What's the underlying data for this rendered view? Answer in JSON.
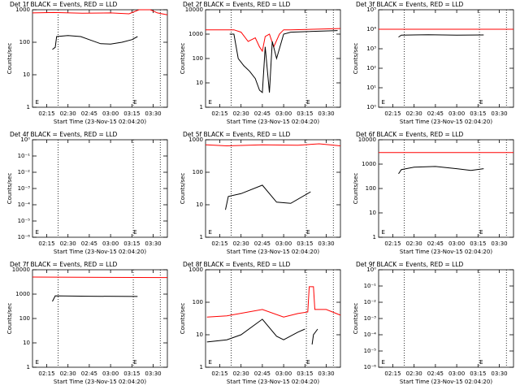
{
  "chart_data": [
    {
      "type": "line",
      "title": "Det 1f BLACK = Events, RED = LLD",
      "xlabel": "Start Time (23-Nov-15 02:04:20)",
      "ylabel": "Counts/sec",
      "ylog": true,
      "xlim": [
        "02:05",
        "03:40"
      ],
      "xticks": [
        "02:15",
        "02:30",
        "02:45",
        "03:00",
        "03:15",
        "03:30"
      ],
      "ylim": [
        1,
        1000
      ],
      "yticks": [
        1,
        10,
        100,
        1000
      ],
      "vlines": [
        "02:23",
        "03:16",
        "03:35"
      ],
      "markers": [
        {
          "label": "E",
          "x": "02:07"
        },
        {
          "label": "E",
          "x": "03:16"
        }
      ],
      "series": [
        {
          "color": "#ff0000",
          "x": [
            "02:05",
            "02:20",
            "02:40",
            "03:00",
            "03:13",
            "03:20",
            "03:28",
            "03:33",
            "03:40"
          ],
          "values": [
            800,
            820,
            780,
            800,
            750,
            1000,
            1000,
            800,
            700
          ]
        },
        {
          "color": "#000000",
          "x": [
            "02:19",
            "02:21",
            "02:22",
            "02:30",
            "02:39",
            "02:45",
            "02:53",
            "03:00",
            "03:08",
            "03:15",
            "03:19"
          ],
          "values": [
            60,
            70,
            150,
            160,
            150,
            120,
            90,
            88,
            100,
            120,
            150
          ]
        }
      ]
    },
    {
      "type": "line",
      "title": "Det 2f BLACK = Events, RED = LLD",
      "xlabel": "Start Time (23-Nov-15 02:04:20)",
      "ylabel": "Counts/sec",
      "ylog": true,
      "xlim": [
        "02:05",
        "03:40"
      ],
      "xticks": [
        "02:15",
        "02:30",
        "02:45",
        "03:00",
        "03:15",
        "03:30"
      ],
      "ylim": [
        1,
        10000
      ],
      "yticks": [
        1,
        10,
        100,
        1000,
        10000
      ],
      "vlines": [
        "02:23",
        "03:16",
        "03:35"
      ],
      "markers": [
        {
          "label": "E",
          "x": "02:07"
        },
        {
          "label": "E",
          "x": "03:16"
        }
      ],
      "series": [
        {
          "color": "#ff0000",
          "x": [
            "02:05",
            "02:20",
            "02:25",
            "02:30",
            "02:35",
            "02:40",
            "02:43",
            "02:45",
            "02:47",
            "02:50",
            "02:53",
            "02:57",
            "03:00",
            "03:05",
            "03:40"
          ],
          "values": [
            1500,
            1500,
            1500,
            1200,
            500,
            700,
            300,
            200,
            800,
            1000,
            300,
            1000,
            1500,
            1500,
            1700
          ]
        },
        {
          "color": "#000000",
          "x": [
            "02:22",
            "02:25",
            "02:28",
            "02:32",
            "02:36",
            "02:40",
            "02:43",
            "02:45",
            "02:47",
            "02:50",
            "02:52",
            "02:55",
            "03:00",
            "03:05",
            "03:38"
          ],
          "values": [
            1000,
            1000,
            100,
            50,
            30,
            15,
            5,
            4,
            300,
            4,
            500,
            100,
            1000,
            1200,
            1400
          ]
        }
      ]
    },
    {
      "type": "line",
      "title": "Det 3f BLACK = Events, RED = LLD",
      "xlabel": "Start Time (23-Nov-15 02:04:20)",
      "ylabel": "Counts/sec",
      "ylog": true,
      "xlim": [
        "02:05",
        "03:40"
      ],
      "xticks": [
        "02:15",
        "02:30",
        "02:45",
        "03:00",
        "03:15",
        "03:30"
      ],
      "ylim": [
        1,
        100000
      ],
      "yticks": [
        {
          "value": 1,
          "label": "10⁰"
        },
        {
          "value": 10,
          "label": "10¹"
        },
        {
          "value": 100,
          "label": "10²"
        },
        {
          "value": 1000,
          "label": "10³"
        },
        {
          "value": 10000,
          "label": "10⁴"
        },
        {
          "value": 100000,
          "label": "10⁵"
        }
      ],
      "vlines": [
        "02:23",
        "03:16",
        "03:35"
      ],
      "markers": [
        {
          "label": "E",
          "x": "02:07"
        },
        {
          "label": "E",
          "x": "03:16"
        }
      ],
      "series": [
        {
          "color": "#ff0000",
          "x": [
            "02:05",
            "03:40"
          ],
          "values": [
            10000,
            10000
          ]
        },
        {
          "color": "#000000",
          "x": [
            "02:19",
            "02:21",
            "02:40",
            "03:00",
            "03:19"
          ],
          "values": [
            4000,
            5000,
            5200,
            5000,
            5100
          ]
        }
      ]
    },
    {
      "type": "line",
      "title": "Det 4f BLACK = Events, RED = LLD",
      "xlabel": "Start Time (23-Nov-15 02:04:20)",
      "ylabel": "Counts/sec",
      "ylog": true,
      "xlim": [
        "02:05",
        "03:40"
      ],
      "xticks": [
        "02:15",
        "02:30",
        "02:45",
        "03:00",
        "03:15",
        "03:30"
      ],
      "ylim": [
        1e-06,
        1
      ],
      "yticks": [
        {
          "value": 1e-06,
          "label": "10⁻⁶"
        },
        {
          "value": 1e-05,
          "label": "10⁻⁵"
        },
        {
          "value": 0.0001,
          "label": "10⁻⁴"
        },
        {
          "value": 0.001,
          "label": "10⁻³"
        },
        {
          "value": 0.01,
          "label": "10⁻²"
        },
        {
          "value": 0.1,
          "label": "10⁻¹"
        },
        {
          "value": 1,
          "label": "10⁰"
        }
      ],
      "vlines": [
        "02:23",
        "03:16",
        "03:35"
      ],
      "markers": [
        {
          "label": "E",
          "x": "02:07"
        },
        {
          "label": "E",
          "x": "03:16"
        }
      ],
      "series": []
    },
    {
      "type": "line",
      "title": "Det 5f BLACK = Events, RED = LLD",
      "xlabel": "Start Time (23-Nov-15 02:04:20)",
      "ylabel": "Counts/sec",
      "ylog": true,
      "xlim": [
        "02:05",
        "03:40"
      ],
      "xticks": [
        "02:15",
        "02:30",
        "02:45",
        "03:00",
        "03:15",
        "03:30"
      ],
      "ylim": [
        1,
        1000
      ],
      "yticks": [
        1,
        10,
        100,
        1000
      ],
      "vlines": [
        "02:23",
        "03:16",
        "03:35"
      ],
      "markers": [
        {
          "label": "E",
          "x": "02:07"
        },
        {
          "label": "E",
          "x": "03:16"
        }
      ],
      "series": [
        {
          "color": "#ff0000",
          "x": [
            "02:05",
            "02:20",
            "02:45",
            "03:10",
            "03:25",
            "03:40"
          ],
          "values": [
            700,
            650,
            700,
            680,
            750,
            650
          ]
        },
        {
          "color": "#000000",
          "x": [
            "02:19",
            "02:21",
            "02:30",
            "02:45",
            "02:55",
            "03:05",
            "03:19"
          ],
          "values": [
            7,
            18,
            22,
            40,
            12,
            11,
            25
          ]
        }
      ]
    },
    {
      "type": "line",
      "title": "Det 6f BLACK = Events, RED = LLD",
      "xlabel": "Start Time (23-Nov-15 02:04:20)",
      "ylabel": "Counts/sec",
      "ylog": true,
      "xlim": [
        "02:05",
        "03:40"
      ],
      "xticks": [
        "02:15",
        "02:30",
        "02:45",
        "03:00",
        "03:15",
        "03:30"
      ],
      "ylim": [
        1,
        10000
      ],
      "yticks": [
        1,
        10,
        100,
        1000,
        10000
      ],
      "vlines": [
        "02:23",
        "03:16",
        "03:35"
      ],
      "markers": [
        {
          "label": "E",
          "x": "02:07"
        },
        {
          "label": "E",
          "x": "03:16"
        }
      ],
      "series": [
        {
          "color": "#ff0000",
          "x": [
            "02:05",
            "03:40"
          ],
          "values": [
            3000,
            3000
          ]
        },
        {
          "color": "#000000",
          "x": [
            "02:19",
            "02:21",
            "02:30",
            "02:45",
            "03:00",
            "03:10",
            "03:19"
          ],
          "values": [
            400,
            600,
            750,
            800,
            650,
            550,
            650
          ]
        }
      ]
    },
    {
      "type": "line",
      "title": "Det 7f BLACK = Events, RED = LLD",
      "xlabel": "Start Time (23-Nov-15 02:04:20)",
      "ylabel": "Counts/sec",
      "ylog": true,
      "xlim": [
        "02:05",
        "03:40"
      ],
      "xticks": [
        "02:15",
        "02:30",
        "02:45",
        "03:00",
        "03:15",
        "03:30"
      ],
      "ylim": [
        1,
        10000
      ],
      "yticks": [
        1,
        10,
        100,
        1000,
        10000
      ],
      "vlines": [
        "02:23",
        "03:16",
        "03:35"
      ],
      "markers": [
        {
          "label": "E",
          "x": "02:07"
        },
        {
          "label": "E",
          "x": "03:16"
        }
      ],
      "series": [
        {
          "color": "#ff0000",
          "x": [
            "02:05",
            "03:40"
          ],
          "values": [
            5000,
            4800
          ]
        },
        {
          "color": "#000000",
          "x": [
            "02:19",
            "02:21",
            "02:45",
            "03:19"
          ],
          "values": [
            500,
            850,
            820,
            800
          ]
        }
      ]
    },
    {
      "type": "line",
      "title": "Det 8f BLACK = Events, RED = LLD",
      "xlabel": "Start Time (23-Nov-15 02:04:20)",
      "ylabel": "Counts/sec",
      "ylog": true,
      "xlim": [
        "02:05",
        "03:40"
      ],
      "xticks": [
        "02:15",
        "02:30",
        "02:45",
        "03:00",
        "03:15",
        "03:30"
      ],
      "ylim": [
        1,
        1000
      ],
      "yticks": [
        1,
        10,
        100,
        1000
      ],
      "vlines": [
        "02:23",
        "03:16",
        "03:35"
      ],
      "markers": [
        {
          "label": "E",
          "x": "02:07"
        },
        {
          "label": "E",
          "x": "03:16"
        }
      ],
      "series": [
        {
          "color": "#ff0000",
          "x": [
            "02:06",
            "02:20",
            "02:45",
            "03:00",
            "03:10",
            "03:17",
            "03:18",
            "03:21",
            "03:22",
            "03:30",
            "03:40"
          ],
          "values": [
            35,
            38,
            60,
            35,
            45,
            50,
            300,
            300,
            60,
            60,
            40
          ]
        },
        {
          "color": "#000000",
          "x": [
            "02:06",
            "02:20",
            "02:30",
            "02:45",
            "02:55",
            "03:00",
            "03:10",
            "03:15"
          ],
          "values": [
            6,
            7,
            10,
            30,
            9,
            7,
            12,
            15
          ]
        },
        {
          "color": "#000000",
          "x": [
            "03:20",
            "03:21",
            "03:24"
          ],
          "values": [
            5,
            10,
            15
          ]
        }
      ]
    },
    {
      "type": "line",
      "title": "Det 9f BLACK = Events, RED = LLD",
      "xlabel": "Start Time (23-Nov-15 02:04:20)",
      "ylabel": "Counts/sec",
      "ylog": true,
      "xlim": [
        "02:05",
        "03:40"
      ],
      "xticks": [
        "02:15",
        "02:30",
        "02:45",
        "03:00",
        "03:15",
        "03:30"
      ],
      "ylim": [
        1e-06,
        1
      ],
      "yticks": [
        {
          "value": 1e-06,
          "label": "10⁻⁶"
        },
        {
          "value": 1e-05,
          "label": "10⁻⁵"
        },
        {
          "value": 0.0001,
          "label": "10⁻⁴"
        },
        {
          "value": 0.001,
          "label": "10⁻³"
        },
        {
          "value": 0.01,
          "label": "10⁻²"
        },
        {
          "value": 0.1,
          "label": "10⁻¹"
        },
        {
          "value": 1,
          "label": "10⁰"
        }
      ],
      "vlines": [
        "02:23",
        "03:16",
        "03:35"
      ],
      "markers": [
        {
          "label": "E",
          "x": "02:07"
        },
        {
          "label": "E",
          "x": "03:16"
        }
      ],
      "series": []
    }
  ]
}
